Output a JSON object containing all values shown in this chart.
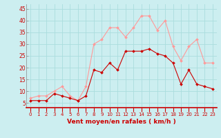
{
  "hours": [
    0,
    1,
    2,
    3,
    4,
    5,
    6,
    7,
    8,
    9,
    10,
    11,
    12,
    13,
    14,
    15,
    16,
    17,
    18,
    19,
    20,
    21,
    22,
    23
  ],
  "wind_avg": [
    6,
    6,
    6,
    9,
    8,
    7,
    6,
    8,
    19,
    18,
    22,
    19,
    27,
    27,
    27,
    28,
    26,
    25,
    22,
    13,
    19,
    13,
    12,
    11
  ],
  "wind_gust": [
    7,
    8,
    8,
    10,
    12,
    8,
    6,
    12,
    30,
    32,
    37,
    37,
    33,
    37,
    42,
    42,
    36,
    40,
    29,
    23,
    29,
    32,
    22,
    22
  ],
  "bg_color": "#cceef0",
  "grid_color": "#aadddd",
  "avg_color": "#cc0000",
  "gust_color": "#ff9999",
  "tick_color": "#cc0000",
  "xlabel": "Vent moyen/en rafales ( km/h )",
  "xlabel_color": "#cc0000",
  "ytick_labels": [
    "5",
    "10",
    "15",
    "20",
    "25",
    "30",
    "35",
    "40",
    "45"
  ],
  "ytick_vals": [
    5,
    10,
    15,
    20,
    25,
    30,
    35,
    40,
    45
  ],
  "ylim": [
    3,
    47
  ],
  "xlim": [
    -0.5,
    23.5
  ]
}
